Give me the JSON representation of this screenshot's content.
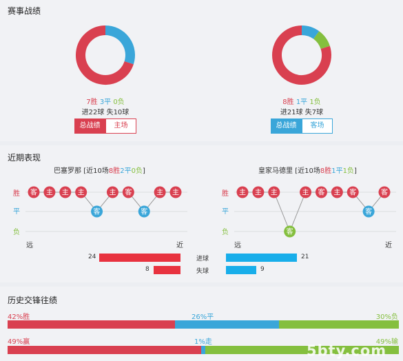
{
  "colors": {
    "win": "#d94050",
    "draw": "#3aa6d9",
    "loss": "#84bf3e",
    "home": "#d94050",
    "away": "#3aa6d9"
  },
  "stats": {
    "title": "赛事战绩",
    "home": {
      "record": {
        "win": "7胜",
        "draw": "3平",
        "loss": "0负"
      },
      "counts": {
        "win": 7,
        "draw": 3,
        "loss": 0
      },
      "goals": "进22球 失10球",
      "btn_total": "总战绩",
      "btn_venue": "主场"
    },
    "away": {
      "record": {
        "win": "8胜",
        "draw": "1平",
        "loss": "1负"
      },
      "counts": {
        "win": 8,
        "draw": 1,
        "loss": 1
      },
      "goals": "进21球 失7球",
      "btn_total": "总战绩",
      "btn_venue": "客场"
    }
  },
  "form": {
    "title": "近期表现",
    "row_labels": {
      "win": "胜",
      "draw": "平",
      "loss": "负"
    },
    "axis": {
      "far": "远",
      "near": "近"
    },
    "home": {
      "name": "巴塞罗那",
      "prefix": "[近10场",
      "win": "8胜",
      "draw": "2平",
      "loss": "0负",
      "suffix": "]",
      "results": [
        "W",
        "W",
        "W",
        "W",
        "D",
        "W",
        "W",
        "D",
        "W",
        "W"
      ],
      "venues": [
        "客",
        "主",
        "主",
        "主",
        "客",
        "主",
        "客",
        "客",
        "主",
        "主"
      ]
    },
    "away": {
      "name": "皇家马德里",
      "prefix": "[近10场",
      "win": "8胜",
      "draw": "1平",
      "loss": "1负",
      "suffix": "]",
      "results": [
        "W",
        "W",
        "W",
        "L",
        "W",
        "W",
        "W",
        "W",
        "D",
        "W"
      ],
      "venues": [
        "主",
        "主",
        "主",
        "客",
        "主",
        "客",
        "主",
        "客",
        "客",
        "客"
      ]
    },
    "goals_for_label": "进球",
    "goals_against_label": "失球",
    "home_goals_for": 24,
    "home_goals_against": 8,
    "away_goals_for": 21,
    "away_goals_against": 9
  },
  "history": {
    "title": "历史交锋往绩",
    "row1": {
      "win": "42%胜",
      "draw": "26%平",
      "loss": "30%负",
      "win_pct": 42,
      "draw_pct": 26,
      "loss_pct": 30
    },
    "row2": {
      "win": "49%赢",
      "draw": "1%走",
      "loss": "49%输",
      "win_pct": 49,
      "draw_pct": 1,
      "loss_pct": 49
    }
  },
  "watermark": "5bty.com"
}
